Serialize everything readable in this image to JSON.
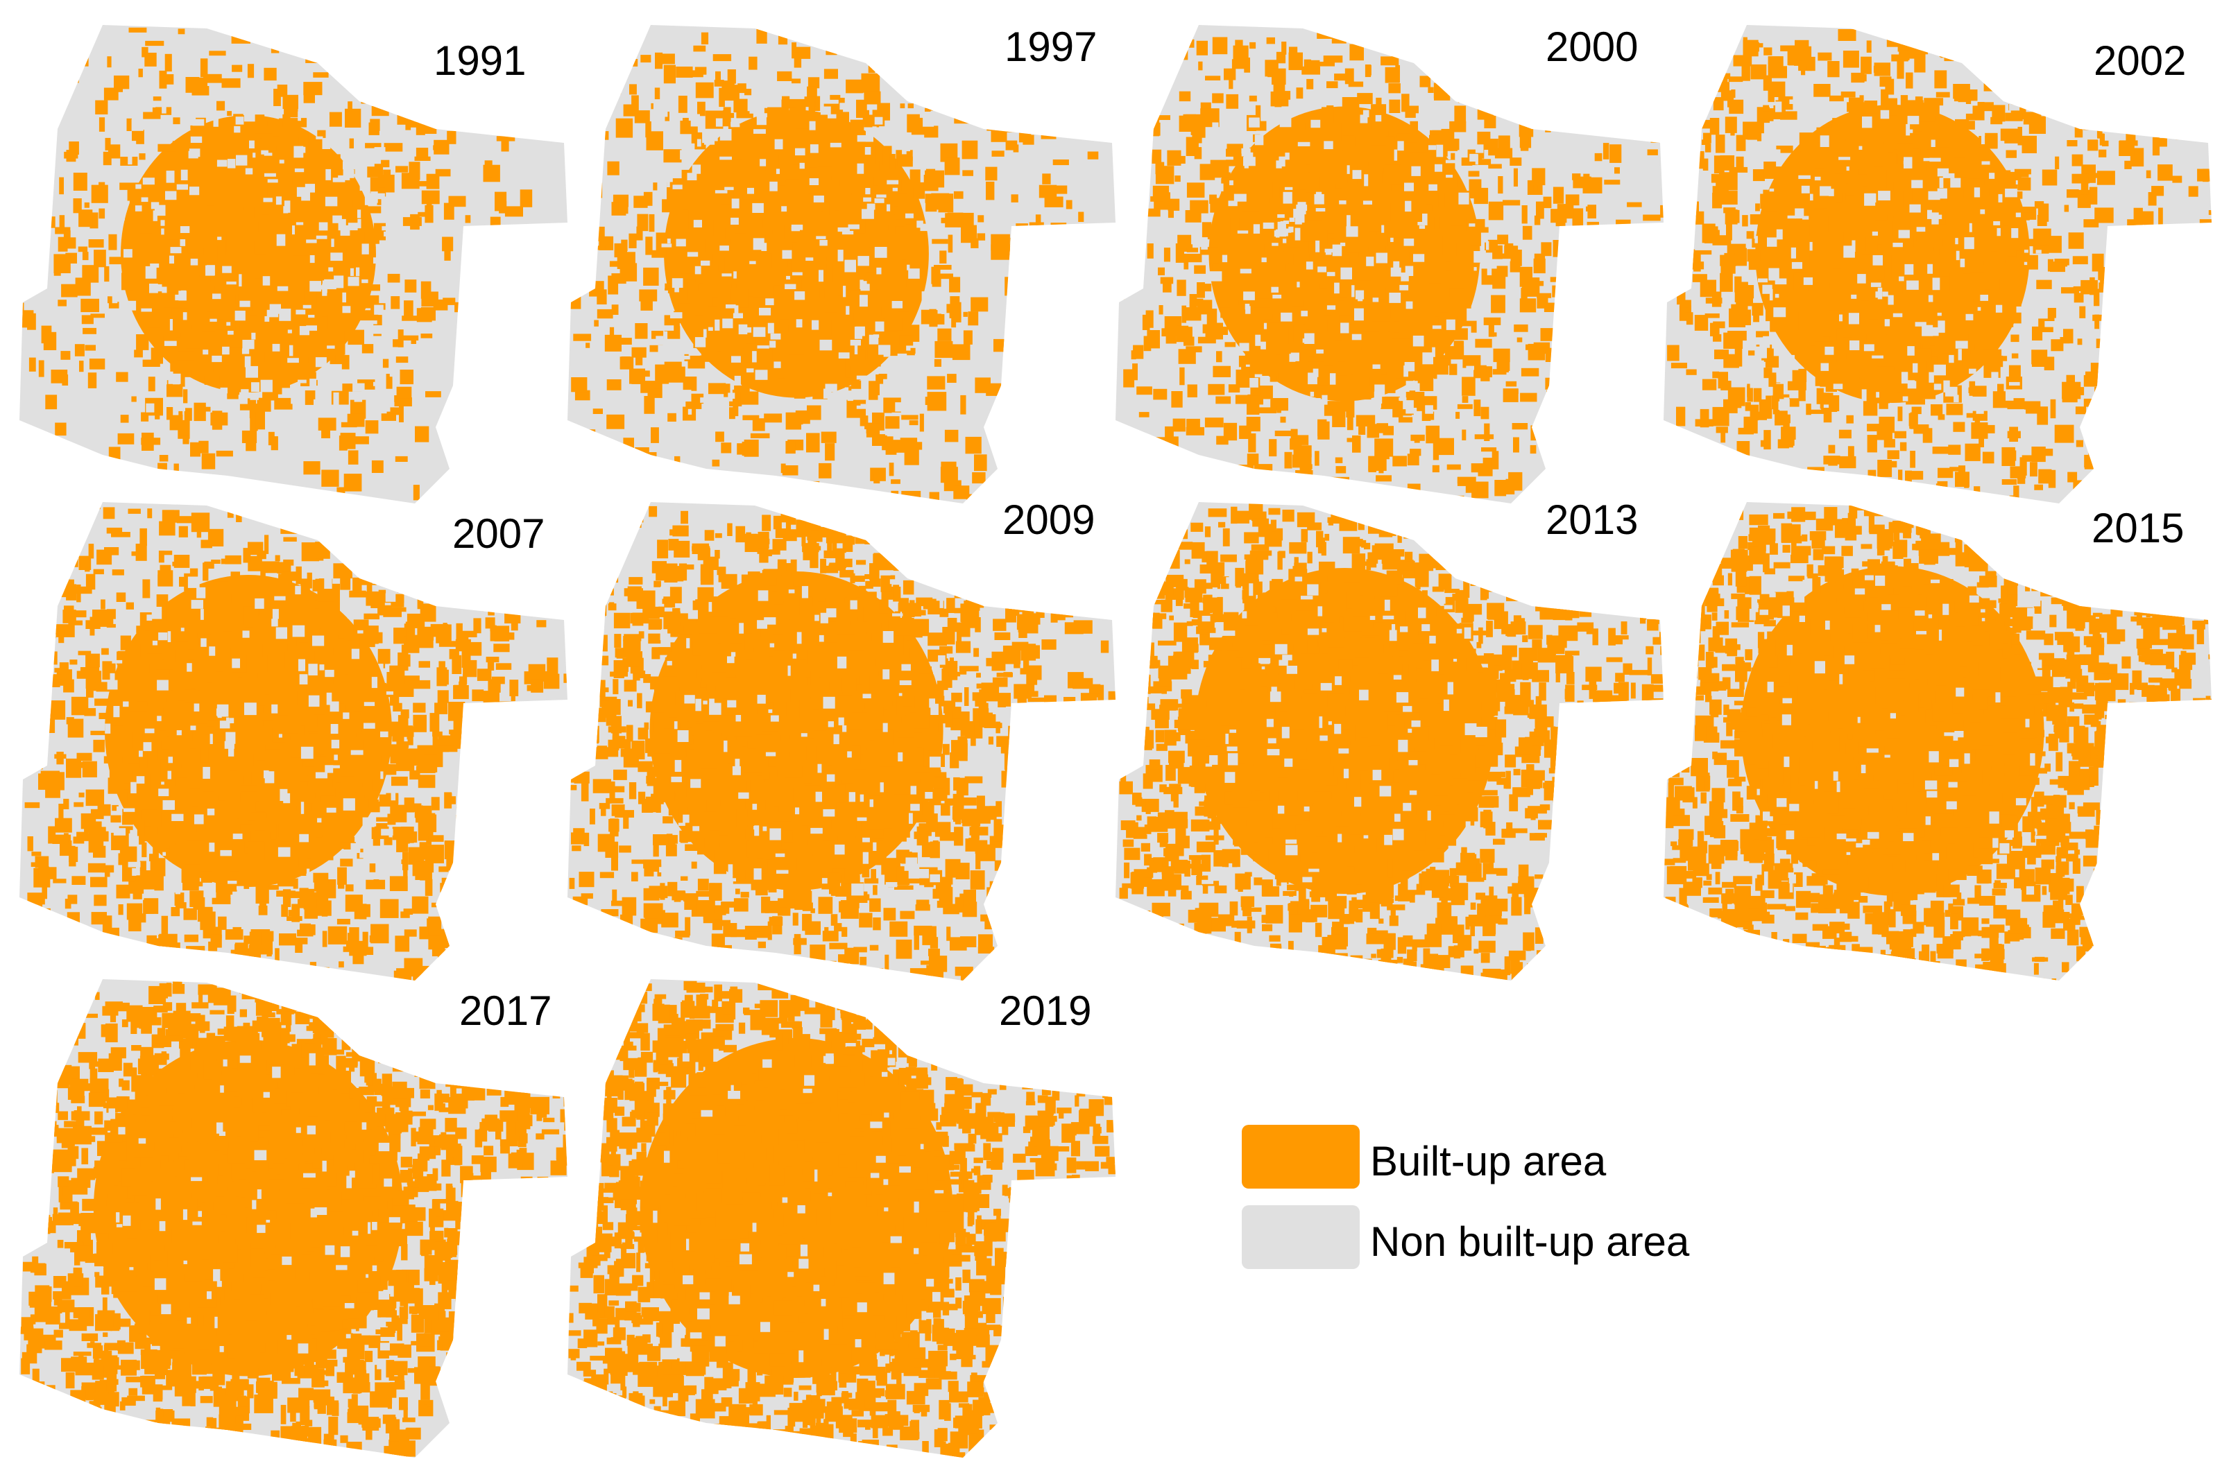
{
  "colors": {
    "built_up": "#ff9900",
    "non_built_up": "#e0e0e0"
  },
  "panels": [
    {
      "year": "1991",
      "built_up_level": 0.5
    },
    {
      "year": "1997",
      "built_up_level": 0.56
    },
    {
      "year": "2000",
      "built_up_level": 0.6
    },
    {
      "year": "2002",
      "built_up_level": 0.62
    },
    {
      "year": "2007",
      "built_up_level": 0.7
    },
    {
      "year": "2009",
      "built_up_level": 0.74
    },
    {
      "year": "2013",
      "built_up_level": 0.78
    },
    {
      "year": "2015",
      "built_up_level": 0.8
    },
    {
      "year": "2017",
      "built_up_level": 0.84
    },
    {
      "year": "2019",
      "built_up_level": 0.86
    }
  ],
  "legend": {
    "items": [
      {
        "label": "Built-up area",
        "color": "#ff9900"
      },
      {
        "label": "Non built-up area",
        "color": "#e0e0e0"
      }
    ]
  }
}
